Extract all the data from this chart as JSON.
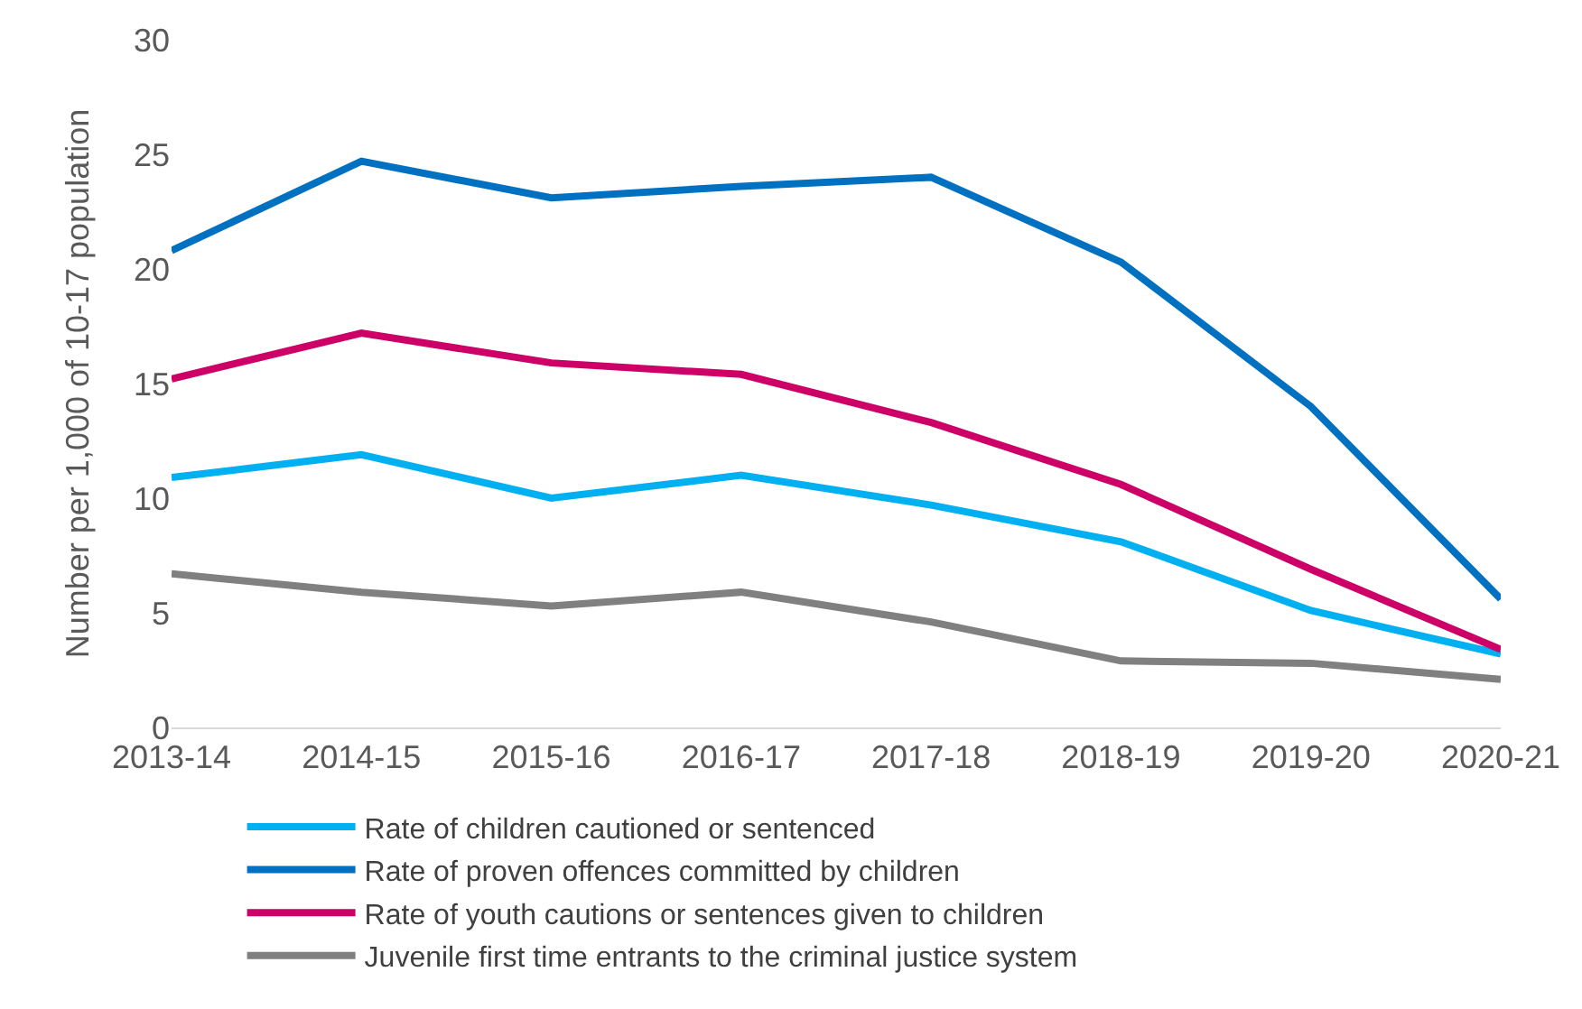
{
  "chart_data": {
    "type": "line",
    "ylabel": "Number per 1,000 of 10-17 population",
    "categories": [
      "2013-14",
      "2014-15",
      "2015-16",
      "2016-17",
      "2017-18",
      "2018-19",
      "2019-20",
      "2020-21"
    ],
    "series": [
      {
        "name": "Rate of children cautioned or sentenced",
        "color": "#00b0f0",
        "values": [
          10.9,
          11.9,
          10.0,
          11.0,
          9.7,
          8.1,
          5.1,
          3.2
        ]
      },
      {
        "name": "Rate of proven offences committed by children",
        "color": "#0070c0",
        "values": [
          20.8,
          24.7,
          23.1,
          23.6,
          24.0,
          20.3,
          14.0,
          5.6
        ]
      },
      {
        "name": "Rate of youth cautions or sentences given to children",
        "color": "#cc0066",
        "values": [
          15.2,
          17.2,
          15.9,
          15.4,
          13.3,
          10.6,
          6.9,
          3.4
        ]
      },
      {
        "name": "Juvenile first time entrants to the criminal justice system",
        "color": "#808080",
        "values": [
          6.7,
          5.9,
          5.3,
          5.9,
          4.6,
          2.9,
          2.8,
          2.1
        ]
      }
    ],
    "ylim": [
      0,
      30
    ],
    "yticks": [
      0,
      5,
      10,
      15,
      20,
      25,
      30
    ],
    "grid": false,
    "legend": "bottom",
    "marker": "none",
    "line_style": "solid"
  }
}
